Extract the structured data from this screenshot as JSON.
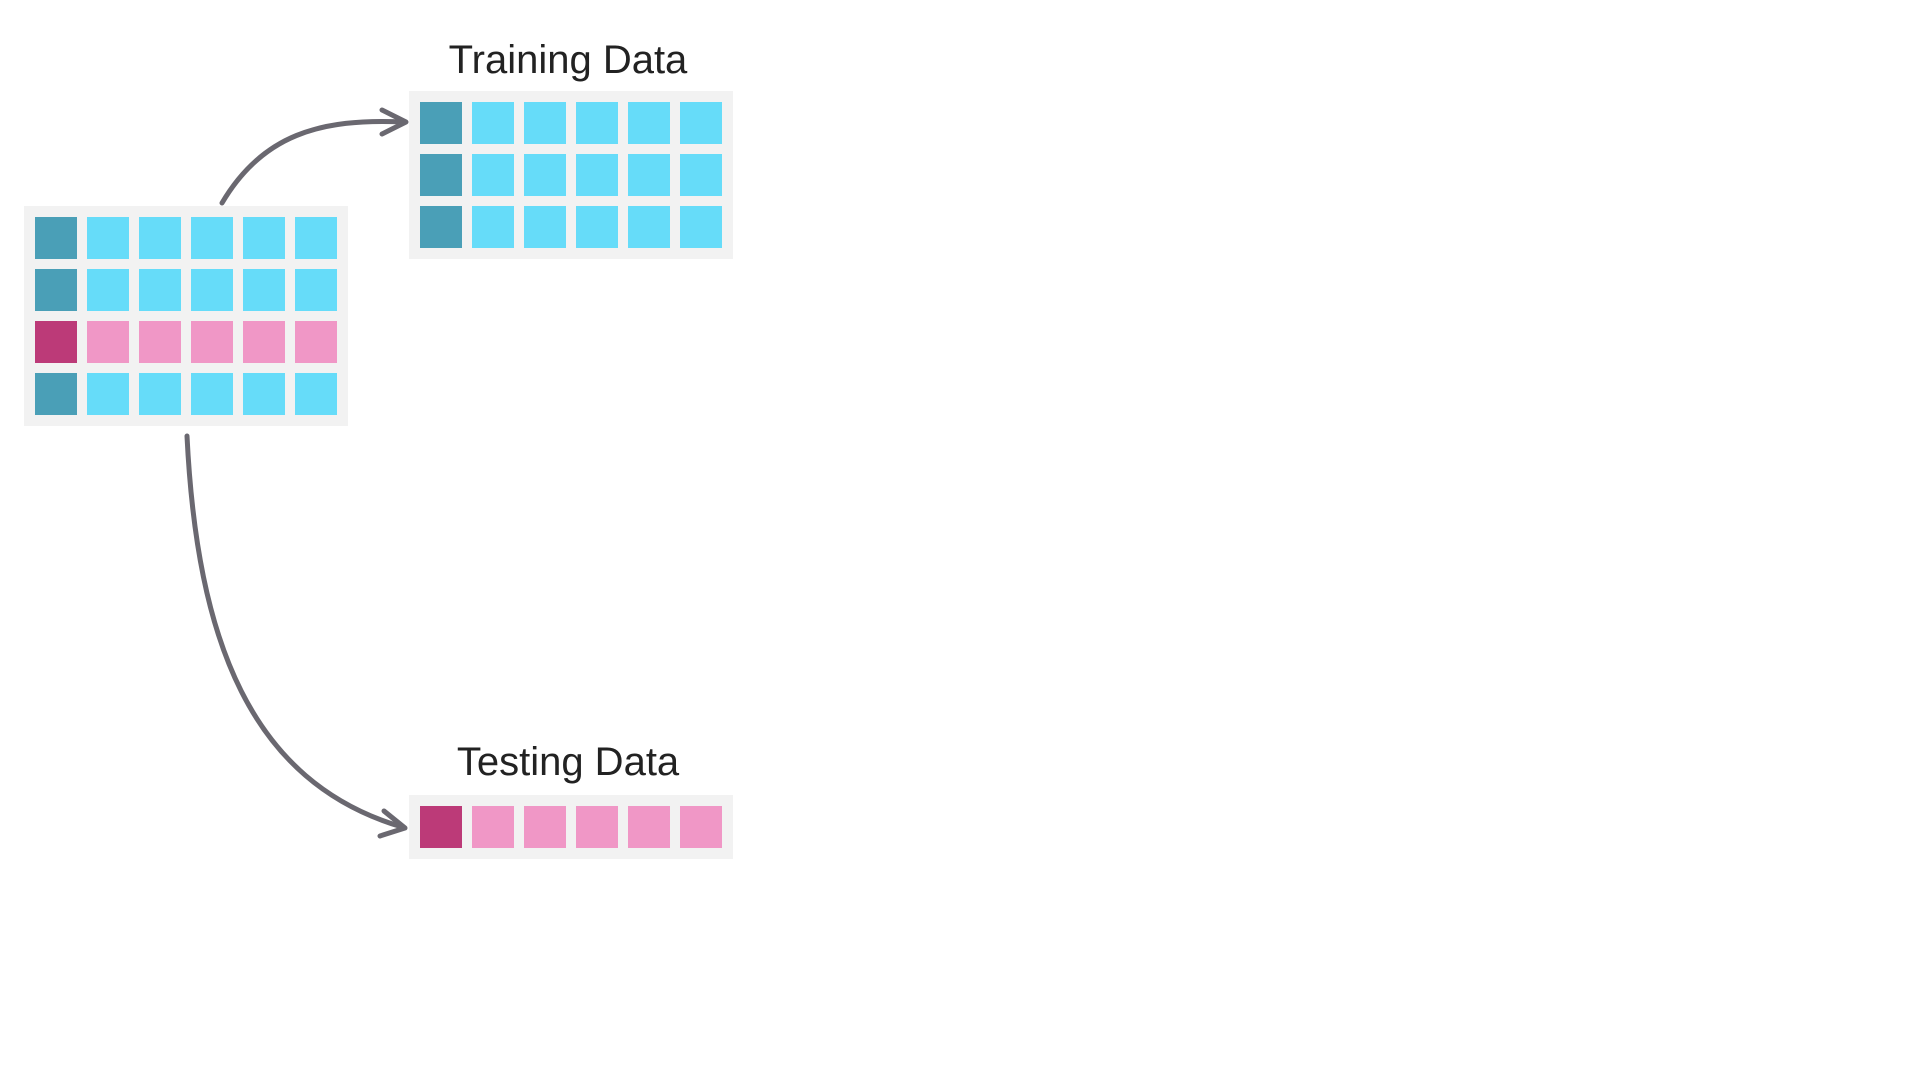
{
  "colors": {
    "blue_dark": "#4a9fb7",
    "blue_light": "#66dcf9",
    "pink_dark": "#bc3a78",
    "pink_light": "#f097c6",
    "grid_background": "#f2f2f2",
    "arrow": "#6a6870",
    "text": "#222222"
  },
  "source": {
    "rows": [
      "blue",
      "blue",
      "pink",
      "blue"
    ],
    "columns": 6
  },
  "training": {
    "title": "Training Data",
    "rows": [
      "blue",
      "blue",
      "blue"
    ],
    "columns": 6
  },
  "testing": {
    "title": "Testing Data",
    "rows": [
      "pink"
    ],
    "columns": 6
  }
}
